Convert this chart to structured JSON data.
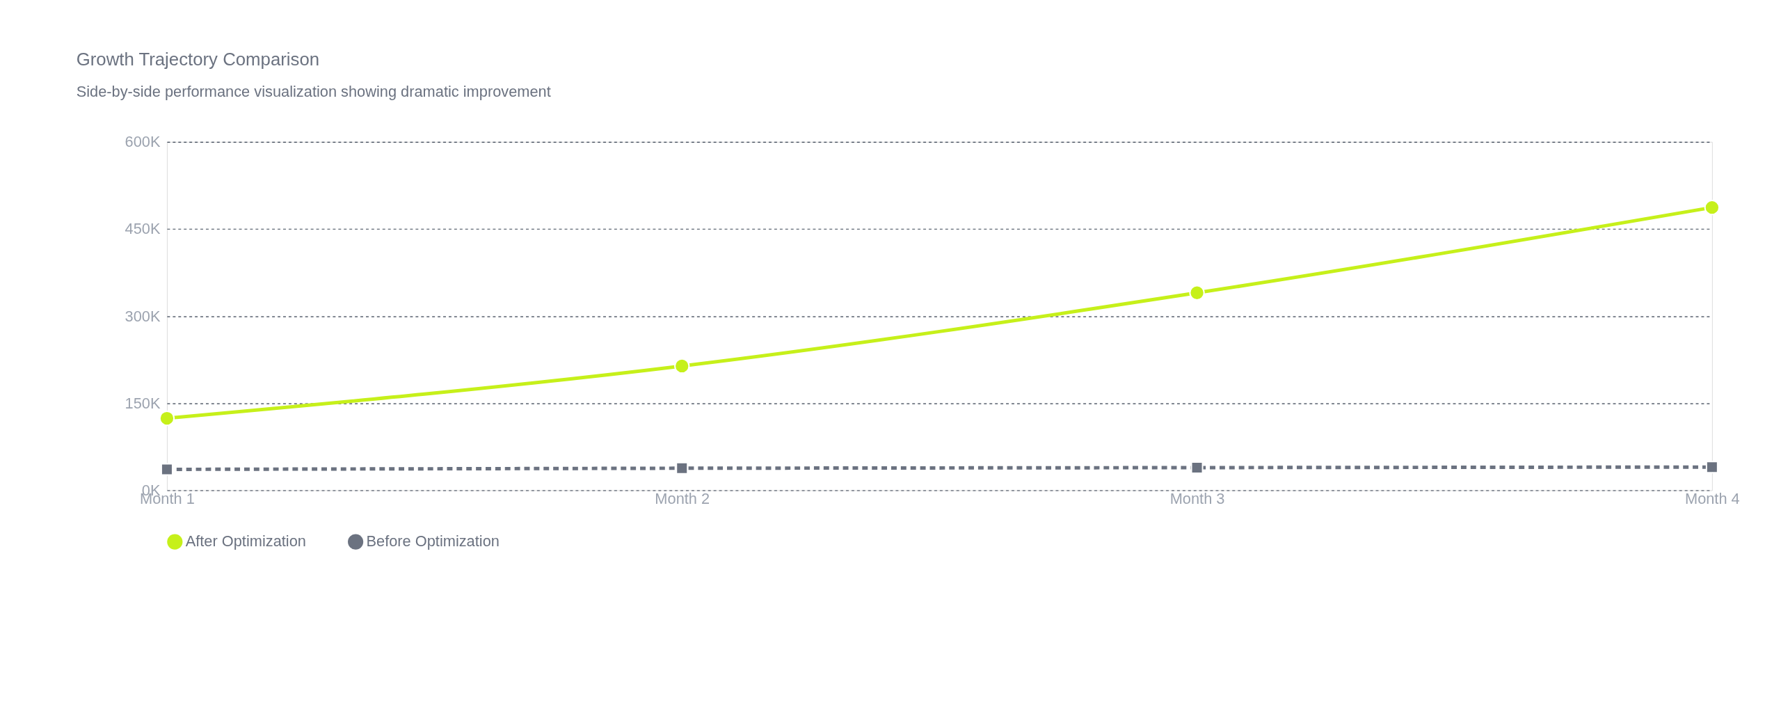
{
  "chart_data": {
    "type": "line",
    "title": "Growth Trajectory Comparison",
    "subtitle": "Side-by-side performance visualization showing dramatic improvement",
    "categories": [
      "Month 1",
      "Month 2",
      "Month 3",
      "Month 4"
    ],
    "series": [
      {
        "name": "After Optimization",
        "color": "#c6f01a",
        "values": [
          124000,
          214000,
          340000,
          487000
        ],
        "marker": "circle",
        "line_style": "solid"
      },
      {
        "name": "Before Optimization",
        "color": "#6b7280",
        "values": [
          36000,
          38000,
          39000,
          40000
        ],
        "marker": "square",
        "line_style": "dashed"
      }
    ],
    "ylim": [
      0,
      600000
    ],
    "yticks": [
      {
        "value": 0,
        "label": "0K"
      },
      {
        "value": 150000,
        "label": "150K"
      },
      {
        "value": 300000,
        "label": "300K"
      },
      {
        "value": 450000,
        "label": "450K"
      },
      {
        "value": 600000,
        "label": "600K"
      }
    ],
    "grid": "y",
    "legend": "bottom"
  }
}
